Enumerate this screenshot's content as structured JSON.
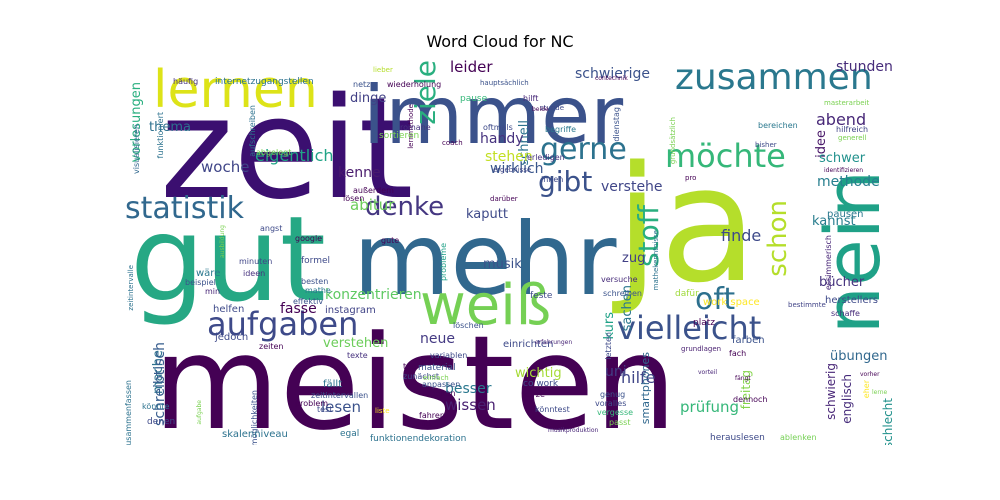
{
  "chart_data": {
    "type": "wordcloud",
    "title": "Word Cloud for NC",
    "colormap": "viridis",
    "words": [
      {
        "text": "meisten",
        "weight": 100,
        "color": "#440154"
      },
      {
        "text": "zeit",
        "weight": 100,
        "color": "#3b0f70"
      },
      {
        "text": "gut",
        "weight": 92,
        "color": "#26a884"
      },
      {
        "text": "ja",
        "weight": 95,
        "color": "#b5de2b"
      },
      {
        "text": "mehr",
        "weight": 80,
        "color": "#31688e"
      },
      {
        "text": "immer",
        "weight": 62,
        "color": "#3b528b"
      },
      {
        "text": "nein",
        "weight": 60,
        "color": "#1fa187"
      },
      {
        "text": "weiß",
        "weight": 40,
        "color": "#75d054"
      },
      {
        "text": "lernen",
        "weight": 35,
        "color": "#dde318"
      },
      {
        "text": "zusammen",
        "weight": 24,
        "color": "#2a788e"
      },
      {
        "text": "aufgaben",
        "weight": 24,
        "color": "#3e4a89"
      },
      {
        "text": "vielleicht",
        "weight": 24,
        "color": "#3b528b"
      },
      {
        "text": "möchte",
        "weight": 22,
        "color": "#35b779"
      },
      {
        "text": "statistik",
        "weight": 22,
        "color": "#31688e"
      },
      {
        "text": "gerne",
        "weight": 21,
        "color": "#2c728e"
      },
      {
        "text": "oft",
        "weight": 22,
        "color": "#2d708e"
      },
      {
        "text": "ziele",
        "weight": 18,
        "color": "#29af7f"
      },
      {
        "text": "denke",
        "weight": 17,
        "color": "#453781"
      },
      {
        "text": "gibt",
        "weight": 18,
        "color": "#3b528b"
      },
      {
        "text": "stoff",
        "weight": 19,
        "color": "#29af7f"
      },
      {
        "text": "schon",
        "weight": 18,
        "color": "#b5de2b"
      },
      {
        "text": "eigentlich",
        "weight": 11,
        "color": "#20a486"
      },
      {
        "text": "woche",
        "weight": 10,
        "color": "#404688"
      },
      {
        "text": "abend",
        "weight": 11,
        "color": "#482878"
      },
      {
        "text": "konzentrieren",
        "weight": 10,
        "color": "#5ec962"
      },
      {
        "text": "methode",
        "weight": 9,
        "color": "#277f8e"
      },
      {
        "text": "finde",
        "weight": 10,
        "color": "#3e4a89"
      },
      {
        "text": "stunden",
        "weight": 9,
        "color": "#472c7a"
      },
      {
        "text": "schwierige",
        "weight": 9,
        "color": "#3b528b"
      },
      {
        "text": "leider",
        "weight": 10,
        "color": "#440154"
      },
      {
        "text": "dinge",
        "weight": 9,
        "color": "#424186"
      },
      {
        "text": "schnell",
        "weight": 8,
        "color": "#2c728e"
      },
      {
        "text": "handy",
        "weight": 9,
        "color": "#46327e"
      },
      {
        "text": "wirklich",
        "weight": 9,
        "color": "#39568c"
      },
      {
        "text": "stehen",
        "weight": 9,
        "color": "#c2df23"
      },
      {
        "text": "abitur",
        "weight": 10,
        "color": "#6ccd5a"
      },
      {
        "text": "kenne",
        "weight": 9,
        "color": "#481a6c"
      },
      {
        "text": "thema",
        "weight": 9,
        "color": "#2d708e"
      },
      {
        "text": "vorlesungen",
        "weight": 9,
        "color": "#29af7f"
      },
      {
        "text": "verstehe",
        "weight": 9,
        "color": "#404688"
      },
      {
        "text": "kaputt",
        "weight": 9,
        "color": "#3e4a89"
      },
      {
        "text": "idee",
        "weight": 8,
        "color": "#481668"
      },
      {
        "text": "schwer",
        "weight": 9,
        "color": "#21918c"
      },
      {
        "text": "kannst",
        "weight": 9,
        "color": "#287d8e"
      },
      {
        "text": "bücher",
        "weight": 9,
        "color": "#46337e"
      },
      {
        "text": "musik",
        "weight": 9,
        "color": "#3b528b"
      },
      {
        "text": "zug",
        "weight": 9,
        "color": "#424186"
      },
      {
        "text": "sachen",
        "weight": 8,
        "color": "#2a788e"
      },
      {
        "text": "kurs",
        "weight": 8,
        "color": "#1fa187"
      },
      {
        "text": "hilfe",
        "weight": 10,
        "color": "#404688"
      },
      {
        "text": "fasse",
        "weight": 8,
        "color": "#440154"
      },
      {
        "text": "neue",
        "weight": 9,
        "color": "#443a83"
      },
      {
        "text": "verstehen",
        "weight": 9,
        "color": "#6ccd5a"
      },
      {
        "text": "mache",
        "weight": 9,
        "color": "#2c728e"
      },
      {
        "text": "schreibtisch",
        "weight": 9,
        "color": "#365c8d"
      },
      {
        "text": "lesen",
        "weight": 10,
        "color": "#3b528b"
      },
      {
        "text": "besser",
        "weight": 10,
        "color": "#2a788e"
      },
      {
        "text": "wissen",
        "weight": 11,
        "color": "#481f70"
      },
      {
        "text": "prüfung",
        "weight": 10,
        "color": "#35b779"
      },
      {
        "text": "wichtig",
        "weight": 9,
        "color": "#a5db36"
      },
      {
        "text": "uni",
        "weight": 10,
        "color": "#433e85"
      },
      {
        "text": "smartphones",
        "weight": 8,
        "color": "#31688e"
      },
      {
        "text": "freitag",
        "weight": 9,
        "color": "#84d44b"
      },
      {
        "text": "schwierig",
        "weight": 8,
        "color": "#482677"
      },
      {
        "text": "englisch",
        "weight": 8,
        "color": "#472d7b"
      },
      {
        "text": "übungen",
        "weight": 9,
        "color": "#31688e"
      },
      {
        "text": "schlecht",
        "weight": 9,
        "color": "#21918c"
      },
      {
        "text": "zusammenfassen",
        "weight": 6,
        "color": "#2c728e"
      },
      {
        "text": "internetzugangstellen",
        "weight": 6,
        "color": "#2c728e"
      },
      {
        "text": "häufig",
        "weight": 5,
        "color": "#46327e"
      },
      {
        "text": "netz",
        "weight": 5,
        "color": "#3b528b"
      },
      {
        "text": "wiederholung",
        "weight": 5,
        "color": "#440154"
      },
      {
        "text": "hauptsächlich",
        "weight": 4,
        "color": "#3b528b"
      },
      {
        "text": "pause",
        "weight": 5,
        "color": "#35b779"
      },
      {
        "text": "hilft",
        "weight": 4,
        "color": "#482878"
      },
      {
        "text": "stunde",
        "weight": 4,
        "color": "#3e4a89"
      },
      {
        "text": "masterarbeit",
        "weight": 4,
        "color": "#7ad151"
      },
      {
        "text": "hilfreich",
        "weight": 5,
        "color": "#414487"
      },
      {
        "text": "generell",
        "weight": 4,
        "color": "#7ad151"
      },
      {
        "text": "bereichen",
        "weight": 4,
        "color": "#2a788e"
      },
      {
        "text": "bisher",
        "weight": 4,
        "color": "#3e4a89"
      },
      {
        "text": "pro",
        "weight": 4,
        "color": "#440154"
      },
      {
        "text": "identifizieren",
        "weight": 3,
        "color": "#440154"
      },
      {
        "text": "essimmerisch",
        "weight": 4,
        "color": "#482677"
      },
      {
        "text": "pausen",
        "weight": 6,
        "color": "#2a788e"
      },
      {
        "text": "herstellers",
        "weight": 6,
        "color": "#3e4a89"
      },
      {
        "text": "schaffe",
        "weight": 5,
        "color": "#472c7a"
      },
      {
        "text": "bestimmte",
        "weight": 4,
        "color": "#414487"
      },
      {
        "text": "farben",
        "weight": 5,
        "color": "#3b528b"
      },
      {
        "text": "platz",
        "weight": 5,
        "color": "#440154"
      },
      {
        "text": "work space",
        "weight": 6,
        "color": "#fde725"
      },
      {
        "text": "grundlagen",
        "weight": 4,
        "color": "#481f70"
      },
      {
        "text": "dafür",
        "weight": 5,
        "color": "#9fda3a"
      },
      {
        "text": "feste",
        "weight": 5,
        "color": "#3e4a89"
      },
      {
        "text": "versuche",
        "weight": 5,
        "color": "#472c7a"
      },
      {
        "text": "schreiben",
        "weight": 5,
        "color": "#3b528b"
      },
      {
        "text": "probleme",
        "weight": 5,
        "color": "#1fa187"
      },
      {
        "text": "mathekenntnisse",
        "weight": 4,
        "color": "#2c728e"
      },
      {
        "text": "ergebnisse",
        "weight": 4,
        "color": "#404688"
      },
      {
        "text": "erledigen",
        "weight": 4,
        "color": "#46327e"
      },
      {
        "text": "innen",
        "weight": 4,
        "color": "#3e4a89"
      },
      {
        "text": "lösen",
        "weight": 4,
        "color": "#440154"
      },
      {
        "text": "außerdem",
        "weight": 4,
        "color": "#440154"
      },
      {
        "text": "begriffe",
        "weight": 4,
        "color": "#2a788e"
      },
      {
        "text": "oftmals",
        "weight": 4,
        "color": "#3e4a89"
      },
      {
        "text": "coach",
        "weight": 3,
        "color": "#440154"
      },
      {
        "text": "lernmethode",
        "weight": 4,
        "color": "#440154"
      },
      {
        "text": "romane",
        "weight": 4,
        "color": "#46327e"
      },
      {
        "text": "sortieren",
        "weight": 5,
        "color": "#7ad151"
      },
      {
        "text": "aufschreiben",
        "weight": 4,
        "color": "#2c728e"
      },
      {
        "text": "abgelegt",
        "weight": 4,
        "color": "#7ad151"
      },
      {
        "text": "visualisieren",
        "weight": 4,
        "color": "#31688e"
      },
      {
        "text": "funktioniert",
        "weight": 4,
        "color": "#2c728e"
      },
      {
        "text": "google",
        "weight": 4,
        "color": "#440154"
      },
      {
        "text": "formel",
        "weight": 5,
        "color": "#3e4a89"
      },
      {
        "text": "minuten",
        "weight": 4,
        "color": "#404688"
      },
      {
        "text": "ideen",
        "weight": 4,
        "color": "#46327e"
      },
      {
        "text": "besten",
        "weight": 4,
        "color": "#3b528b"
      },
      {
        "text": "mathe",
        "weight": 4,
        "color": "#2a788e"
      },
      {
        "text": "wäre",
        "weight": 5,
        "color": "#2a788e"
      },
      {
        "text": "beispiel",
        "weight": 4,
        "color": "#3b528b"
      },
      {
        "text": "min",
        "weight": 4,
        "color": "#482677"
      },
      {
        "text": "helfen",
        "weight": 5,
        "color": "#3e4a89"
      },
      {
        "text": "effektiv",
        "weight": 4,
        "color": "#3b528b"
      },
      {
        "text": "instagram",
        "weight": 5,
        "color": "#414487"
      },
      {
        "text": "jedoch",
        "weight": 5,
        "color": "#3e4a89"
      },
      {
        "text": "zeiten",
        "weight": 4,
        "color": "#440154"
      },
      {
        "text": "texte",
        "weight": 4,
        "color": "#46327e"
      },
      {
        "text": "variablen",
        "weight": 4,
        "color": "#3e4a89"
      },
      {
        "text": "löschen",
        "weight": 4,
        "color": "#3b528b"
      },
      {
        "text": "einrichten",
        "weight": 5,
        "color": "#3e4a89"
      },
      {
        "text": "erfahrungen",
        "weight": 3,
        "color": "#482677"
      },
      {
        "text": "letzten",
        "weight": 4,
        "color": "#3e4a89"
      },
      {
        "text": "fach",
        "weight": 4,
        "color": "#440154"
      },
      {
        "text": "tag",
        "weight": 4,
        "color": "#440154"
      },
      {
        "text": "zunächst",
        "weight": 4,
        "color": "#3e4a89"
      },
      {
        "text": "material",
        "weight": 5,
        "color": "#3b528b"
      },
      {
        "text": "einfach",
        "weight": 4,
        "color": "#7ad151"
      },
      {
        "text": "anpassen",
        "weight": 4,
        "color": "#3b528b"
      },
      {
        "text": "arbeiten",
        "weight": 4,
        "color": "#440154"
      },
      {
        "text": "co work",
        "weight": 5,
        "color": "#3e4a89"
      },
      {
        "text": "kurze",
        "weight": 4,
        "color": "#440154"
      },
      {
        "text": "genug",
        "weight": 4,
        "color": "#3b528b"
      },
      {
        "text": "voralles",
        "weight": 4,
        "color": "#3e4a89"
      },
      {
        "text": "vergesse",
        "weight": 4,
        "color": "#35b779"
      },
      {
        "text": "passt",
        "weight": 4,
        "color": "#7ad151"
      },
      {
        "text": "könntest",
        "weight": 4,
        "color": "#3e4a89"
      },
      {
        "text": "fängt",
        "weight": 3,
        "color": "#440154"
      },
      {
        "text": "dennoch",
        "weight": 4,
        "color": "#440154"
      },
      {
        "text": "eher",
        "weight": 4,
        "color": "#fde725"
      },
      {
        "text": "lerne",
        "weight": 3,
        "color": "#7ad151"
      },
      {
        "text": "vorher",
        "weight": 3,
        "color": "#440154"
      },
      {
        "text": "möglichkeiten",
        "weight": 4,
        "color": "#3b528b"
      },
      {
        "text": "fällt",
        "weight": 5,
        "color": "#2c728e"
      },
      {
        "text": "zeitintervallen",
        "weight": 4,
        "color": "#3b528b"
      },
      {
        "text": "problem",
        "weight": 4,
        "color": "#440154"
      },
      {
        "text": "test",
        "weight": 4,
        "color": "#3e4a89"
      },
      {
        "text": "fahren",
        "weight": 4,
        "color": "#440154"
      },
      {
        "text": "liste",
        "weight": 3,
        "color": "#fde725"
      },
      {
        "text": "stück",
        "weight": 3,
        "color": "#440154"
      },
      {
        "text": "zeitintervalle",
        "weight": 3,
        "color": "#2c728e"
      },
      {
        "text": "skalenniveau",
        "weight": 5,
        "color": "#2c728e"
      },
      {
        "text": "egal",
        "weight": 4,
        "color": "#2c728e"
      },
      {
        "text": "funktionendekoration",
        "weight": 4,
        "color": "#2c728e"
      },
      {
        "text": "musikproduktion",
        "weight": 3,
        "color": "#482677"
      },
      {
        "text": "herauslesen",
        "weight": 4,
        "color": "#3e4a89"
      },
      {
        "text": "ablenken",
        "weight": 4,
        "color": "#75d054"
      },
      {
        "text": "denen",
        "weight": 4,
        "color": "#3e4a89"
      },
      {
        "text": "könnte",
        "weight": 3,
        "color": "#2c728e"
      },
      {
        "text": "aufgabe",
        "weight": 3,
        "color": "#7ad151"
      },
      {
        "text": "ausbildung",
        "weight": 3,
        "color": "#7ad151"
      },
      {
        "text": "angst",
        "weight": 3,
        "color": "#3e4a89"
      },
      {
        "text": "gute",
        "weight": 4,
        "color": "#440154"
      },
      {
        "text": "vorteil",
        "weight": 3,
        "color": "#482677"
      },
      {
        "text": "beide",
        "weight": 3,
        "color": "#440154"
      },
      {
        "text": "lieber",
        "weight": 3,
        "color": "#b5de2b"
      },
      {
        "text": "contechnik",
        "weight": 3,
        "color": "#440154"
      },
      {
        "text": "dienstag",
        "weight": 4,
        "color": "#3b528b"
      },
      {
        "text": "darüber",
        "weight": 3,
        "color": "#440154"
      },
      {
        "text": "grundsätzlich",
        "weight": 3,
        "color": "#7ad151"
      }
    ]
  }
}
